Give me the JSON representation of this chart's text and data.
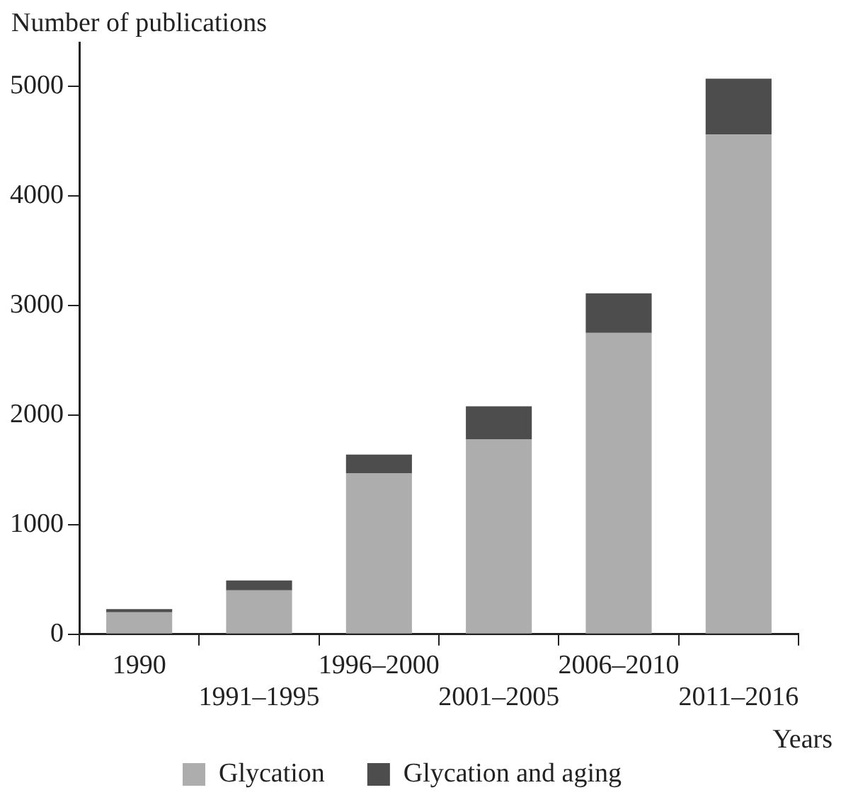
{
  "chart_data": {
    "type": "bar",
    "stacked": true,
    "ylabel": "Number of publications",
    "xlabel": "Years",
    "categories": [
      "1990",
      "1991–1995",
      "1996–2000",
      "2001–2005",
      "2006–2010",
      "2011–2016"
    ],
    "series": [
      {
        "name": "Glycation",
        "color": "#adadad",
        "values": [
          200,
          400,
          1470,
          1780,
          2750,
          4560
        ]
      },
      {
        "name": "Glycation and aging",
        "color": "#4d4d4d",
        "values": [
          30,
          90,
          170,
          300,
          360,
          510
        ]
      }
    ],
    "ylim": [
      0,
      5400
    ],
    "yticks": [
      0,
      1000,
      2000,
      3000,
      4000,
      5000
    ],
    "grid": false,
    "legend": "bottom"
  }
}
